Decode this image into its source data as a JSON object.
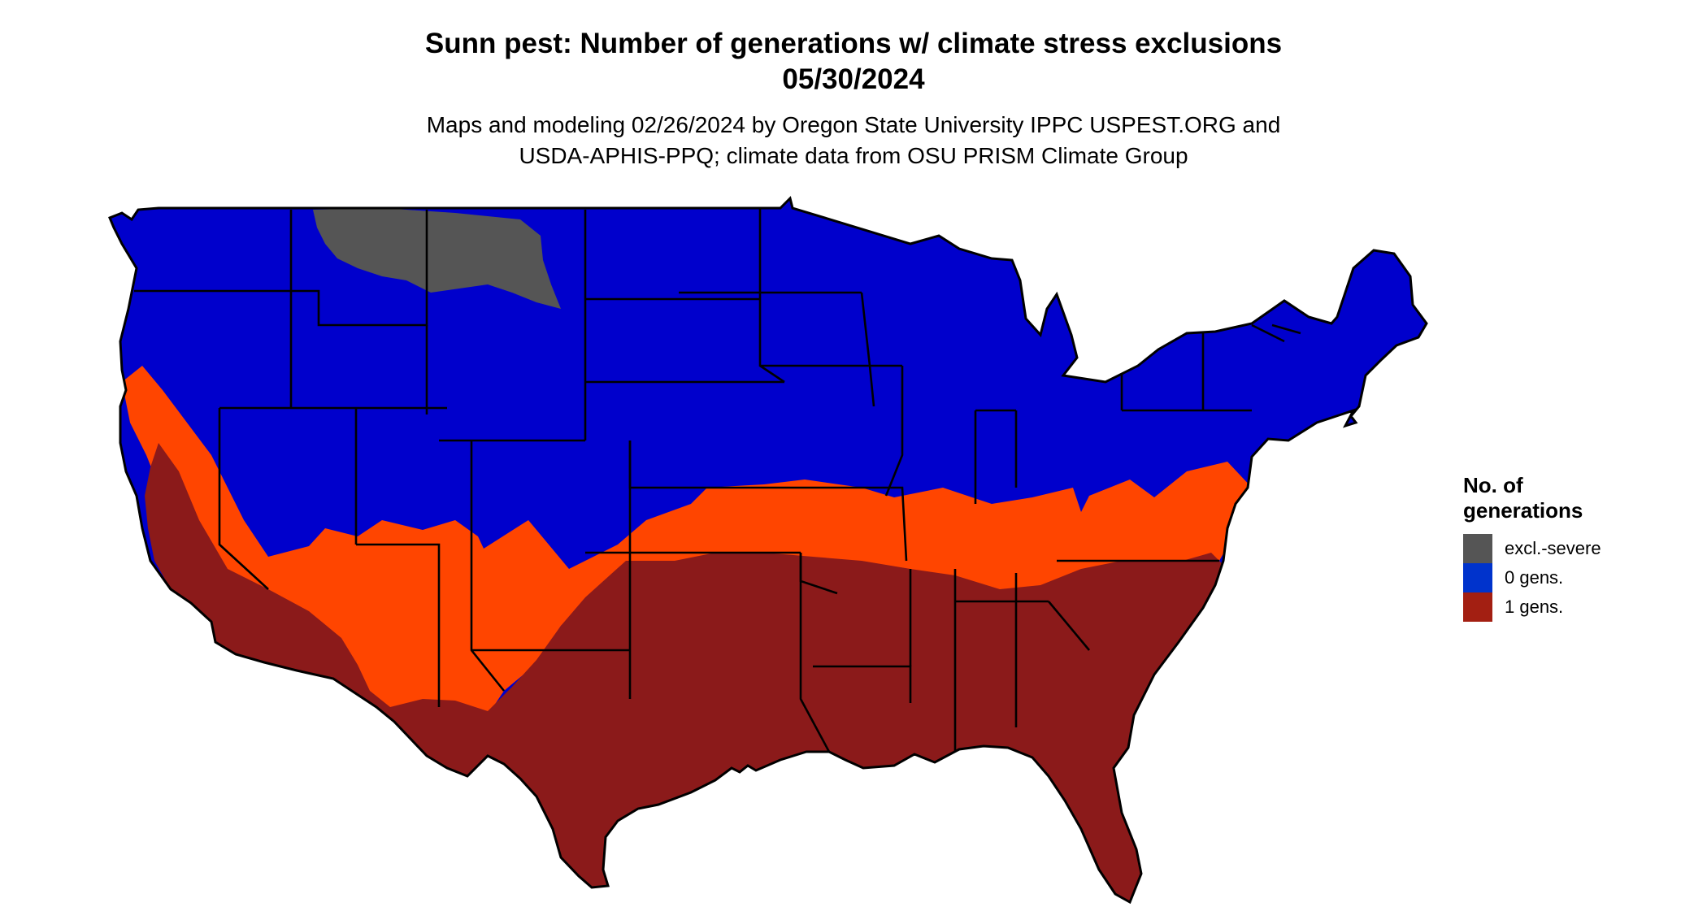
{
  "title": {
    "line1": "Sunn pest: Number of generations w/ climate stress exclusions",
    "line2": "05/30/2024"
  },
  "subtitle": {
    "line1": "Maps and modeling 02/26/2024 by Oregon State University IPPC USPEST.ORG and",
    "line2": "USDA-APHIS-PPQ; climate data from OSU PRISM Climate Group"
  },
  "map": {
    "region": "Contiguous United States",
    "colors": {
      "excluded": "#555555",
      "zero": "#0000CC",
      "transition": "#FF4500",
      "one": "#8B1A1A",
      "border": "#000000"
    }
  },
  "legend": {
    "title_line1": "No. of",
    "title_line2": "generations",
    "items": [
      {
        "label": "excl.-severe",
        "color": "#555555"
      },
      {
        "label": "0 gens.",
        "color": "#0033CC"
      },
      {
        "label": "1 gens.",
        "color": "#A31F12"
      }
    ]
  }
}
